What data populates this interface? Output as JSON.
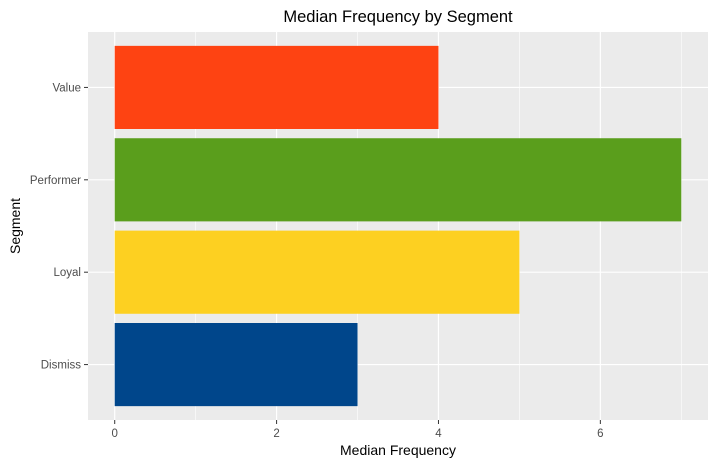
{
  "chart_data": {
    "type": "bar",
    "orientation": "horizontal",
    "title": "Median Frequency by Segment",
    "xlabel": "Median Frequency",
    "ylabel": "Segment",
    "categories": [
      "Dismiss",
      "Loyal",
      "Performer",
      "Value"
    ],
    "values": [
      3,
      5,
      7,
      4
    ],
    "colors": [
      "#00468B",
      "#FDD021",
      "#5A9E1C",
      "#FE4312"
    ],
    "xlim": [
      -0.33,
      7.33
    ],
    "xticks": [
      0,
      2,
      4,
      6
    ],
    "grid": true,
    "legend": "none",
    "panel_background": "#EBEBEB",
    "grid_color": "#FFFFFF"
  }
}
